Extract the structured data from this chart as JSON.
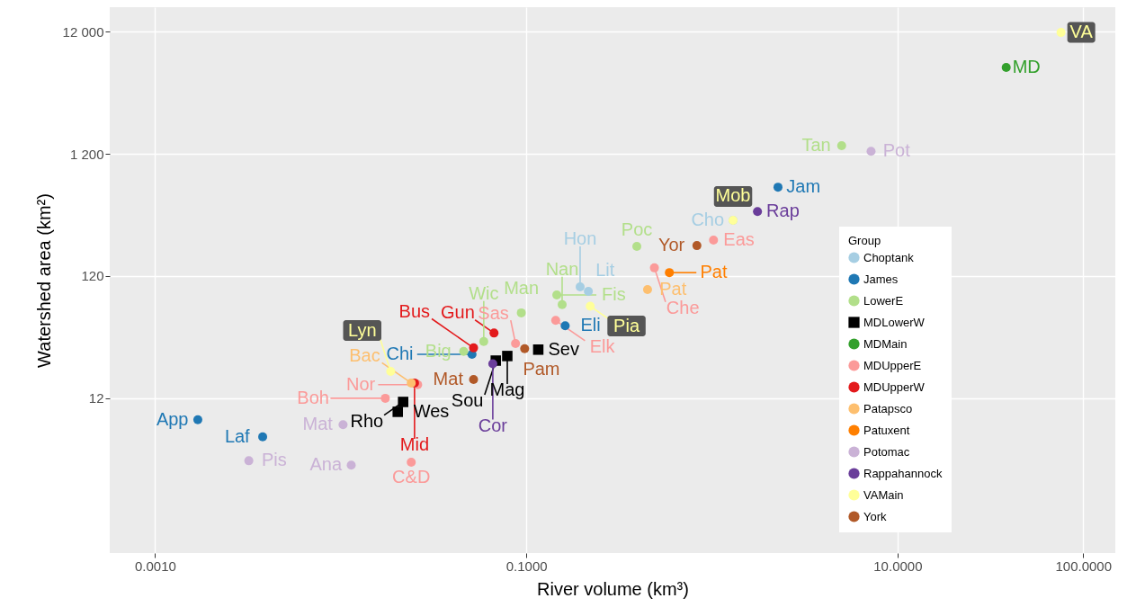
{
  "chart_data": {
    "type": "scatter",
    "xlabel": "River volume (km³)",
    "ylabel": "Watershed area (km²)",
    "legend_title": "Group",
    "xlim": [
      0.00057,
      149
    ],
    "ylim": [
      0.65,
      19000
    ],
    "xticks": [
      {
        "value": 0.001,
        "label": "0.0010"
      },
      {
        "value": 0.1,
        "label": "0.1000"
      },
      {
        "value": 10,
        "label": "10.0000"
      },
      {
        "value": 100,
        "label": "100.0000"
      }
    ],
    "yticks": [
      12,
      120,
      {
        "value": 1200,
        "label": "1 200"
      },
      {
        "value": 12000,
        "label": "12 000"
      }
    ],
    "log": "xy",
    "grid": true,
    "legend": "right",
    "marker": "circle",
    "series": [
      {
        "name": "Choptank",
        "color": "#a6cee3",
        "x": [
          0.195,
          0.216,
          1.3
        ],
        "values": [
          98,
          90,
          343
        ],
        "value_labels": [
          "Hon",
          "Lit",
          "Cho"
        ]
      },
      {
        "name": "James",
        "color": "#1f78b4",
        "x": [
          0.0017,
          0.0038,
          0.051,
          0.162,
          2.27
        ],
        "values": [
          8.0,
          5.8,
          27.5,
          47,
          640
        ],
        "value_labels": [
          "App",
          "Laf",
          "Chi",
          "Eli",
          "Jam"
        ]
      },
      {
        "name": "LowerE",
        "color": "#b2df8a",
        "x": [
          0.046,
          0.059,
          0.094,
          0.146,
          0.156,
          0.394,
          5.0
        ],
        "values": [
          29,
          35,
          60,
          84,
          70,
          210,
          1400
        ],
        "value_labels": [
          "Big",
          "Wic",
          "Man",
          "Fis",
          "Nan",
          "Poc",
          "Tan"
        ]
      },
      {
        "name": "MDLowerW",
        "color": "#000000",
        "marker": "square",
        "x": [
          0.0203,
          0.0217,
          0.0685,
          0.079,
          0.116
        ],
        "values": [
          9.3,
          11.2,
          24.4,
          26.6,
          30
        ],
        "value_labels": [
          "Wes",
          "Rho",
          "Sou",
          "Mag",
          "Sev"
        ]
      },
      {
        "name": "MDMain",
        "color": "#33a02c",
        "x": [
          38.5
        ],
        "values": [
          6100
        ],
        "value_labels": [
          "MD"
        ]
      },
      {
        "name": "MDUpperE",
        "color": "#fb9a99",
        "x": [
          0.0174,
          0.026,
          0.024,
          0.0875,
          0.144,
          0.49,
          1.02
        ],
        "values": [
          12,
          15.5,
          3.6,
          33.7,
          52,
          140,
          236
        ],
        "value_labels": [
          "Boh",
          "Nor",
          "C&D",
          "Sas",
          "Elk",
          "Che",
          "Eas"
        ]
      },
      {
        "name": "MDUpperW",
        "color": "#e31a1c",
        "x": [
          0.025,
          0.052,
          0.067
        ],
        "values": [
          16,
          31,
          41
        ],
        "value_labels": [
          "Mid",
          "Bus",
          "Gun"
        ]
      },
      {
        "name": "Patapsco",
        "color": "#fdbf6f",
        "x": [
          0.024,
          0.45
        ],
        "values": [
          16,
          93
        ],
        "value_labels": [
          "Bac",
          "Pat"
        ]
      },
      {
        "name": "Patuxent",
        "color": "#ff7f00",
        "x": [
          0.59
        ],
        "values": [
          128
        ],
        "value_labels": [
          "Pat"
        ]
      },
      {
        "name": "Potomac",
        "color": "#cab2d6",
        "x": [
          0.0032,
          0.0103,
          0.0114,
          7.2
        ],
        "values": [
          3.7,
          7.3,
          3.4,
          1260
        ],
        "value_labels": [
          "Pis",
          "Mat",
          "Ana",
          "Pot"
        ]
      },
      {
        "name": "Rappahannock",
        "color": "#6a3d9a",
        "x": [
          0.066,
          1.76
        ],
        "values": [
          23,
          405
        ],
        "value_labels": [
          "Cor",
          "Rap"
        ]
      },
      {
        "name": "VAMain",
        "color": "#ffff99",
        "x": [
          0.0186,
          0.221,
          1.3,
          76
        ],
        "values": [
          19.9,
          68,
          343,
          11800
        ],
        "value_labels": [
          "Lyn",
          "Pia",
          "Mob",
          "VA"
        ]
      },
      {
        "name": "York",
        "color": "#b15928",
        "x": [
          0.052,
          0.098,
          0.83
        ],
        "values": [
          17.1,
          30.5,
          213
        ],
        "value_labels": [
          "Mat",
          "Pam",
          "Yor"
        ]
      }
    ]
  }
}
